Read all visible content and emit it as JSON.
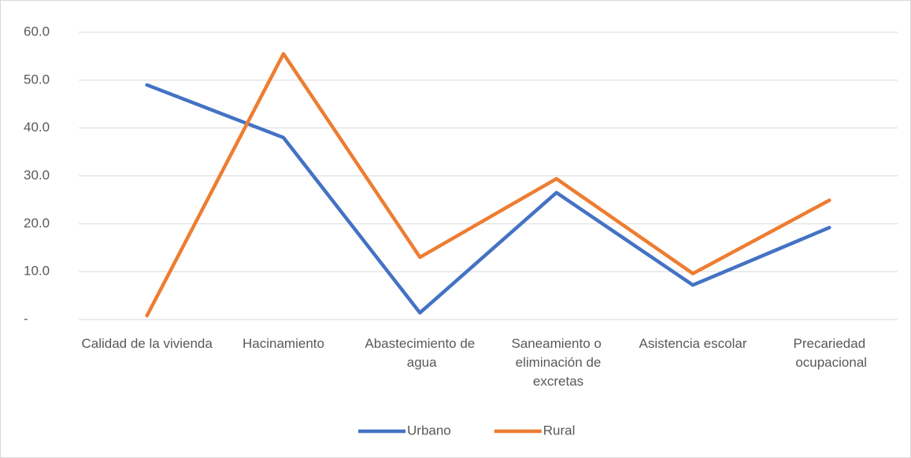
{
  "chart_data": {
    "type": "line",
    "categories": [
      "Calidad de la vivienda",
      "Hacinamiento",
      "Abastecimiento de agua",
      "Saneamiento o eliminación de excretas",
      "Asistencia escolar",
      "Precariedad ocupacional"
    ],
    "series": [
      {
        "name": "Urbano",
        "color": "#4472c4",
        "values": [
          49.0,
          38.0,
          1.4,
          26.5,
          7.2,
          19.2
        ]
      },
      {
        "name": "Rural",
        "color": "#ed7d31",
        "values": [
          0.8,
          55.5,
          13.0,
          29.4,
          9.6,
          24.9
        ]
      }
    ],
    "ylim": [
      0,
      60
    ],
    "yticks": [
      {
        "value": 0,
        "label": "-"
      },
      {
        "value": 10,
        "label": "10.0"
      },
      {
        "value": 20,
        "label": "20.0"
      },
      {
        "value": 30,
        "label": "30.0"
      },
      {
        "value": 40,
        "label": "40.0"
      },
      {
        "value": 50,
        "label": "50.0"
      },
      {
        "value": 60,
        "label": "60.0"
      }
    ],
    "grid": true,
    "legend": "bottom"
  }
}
